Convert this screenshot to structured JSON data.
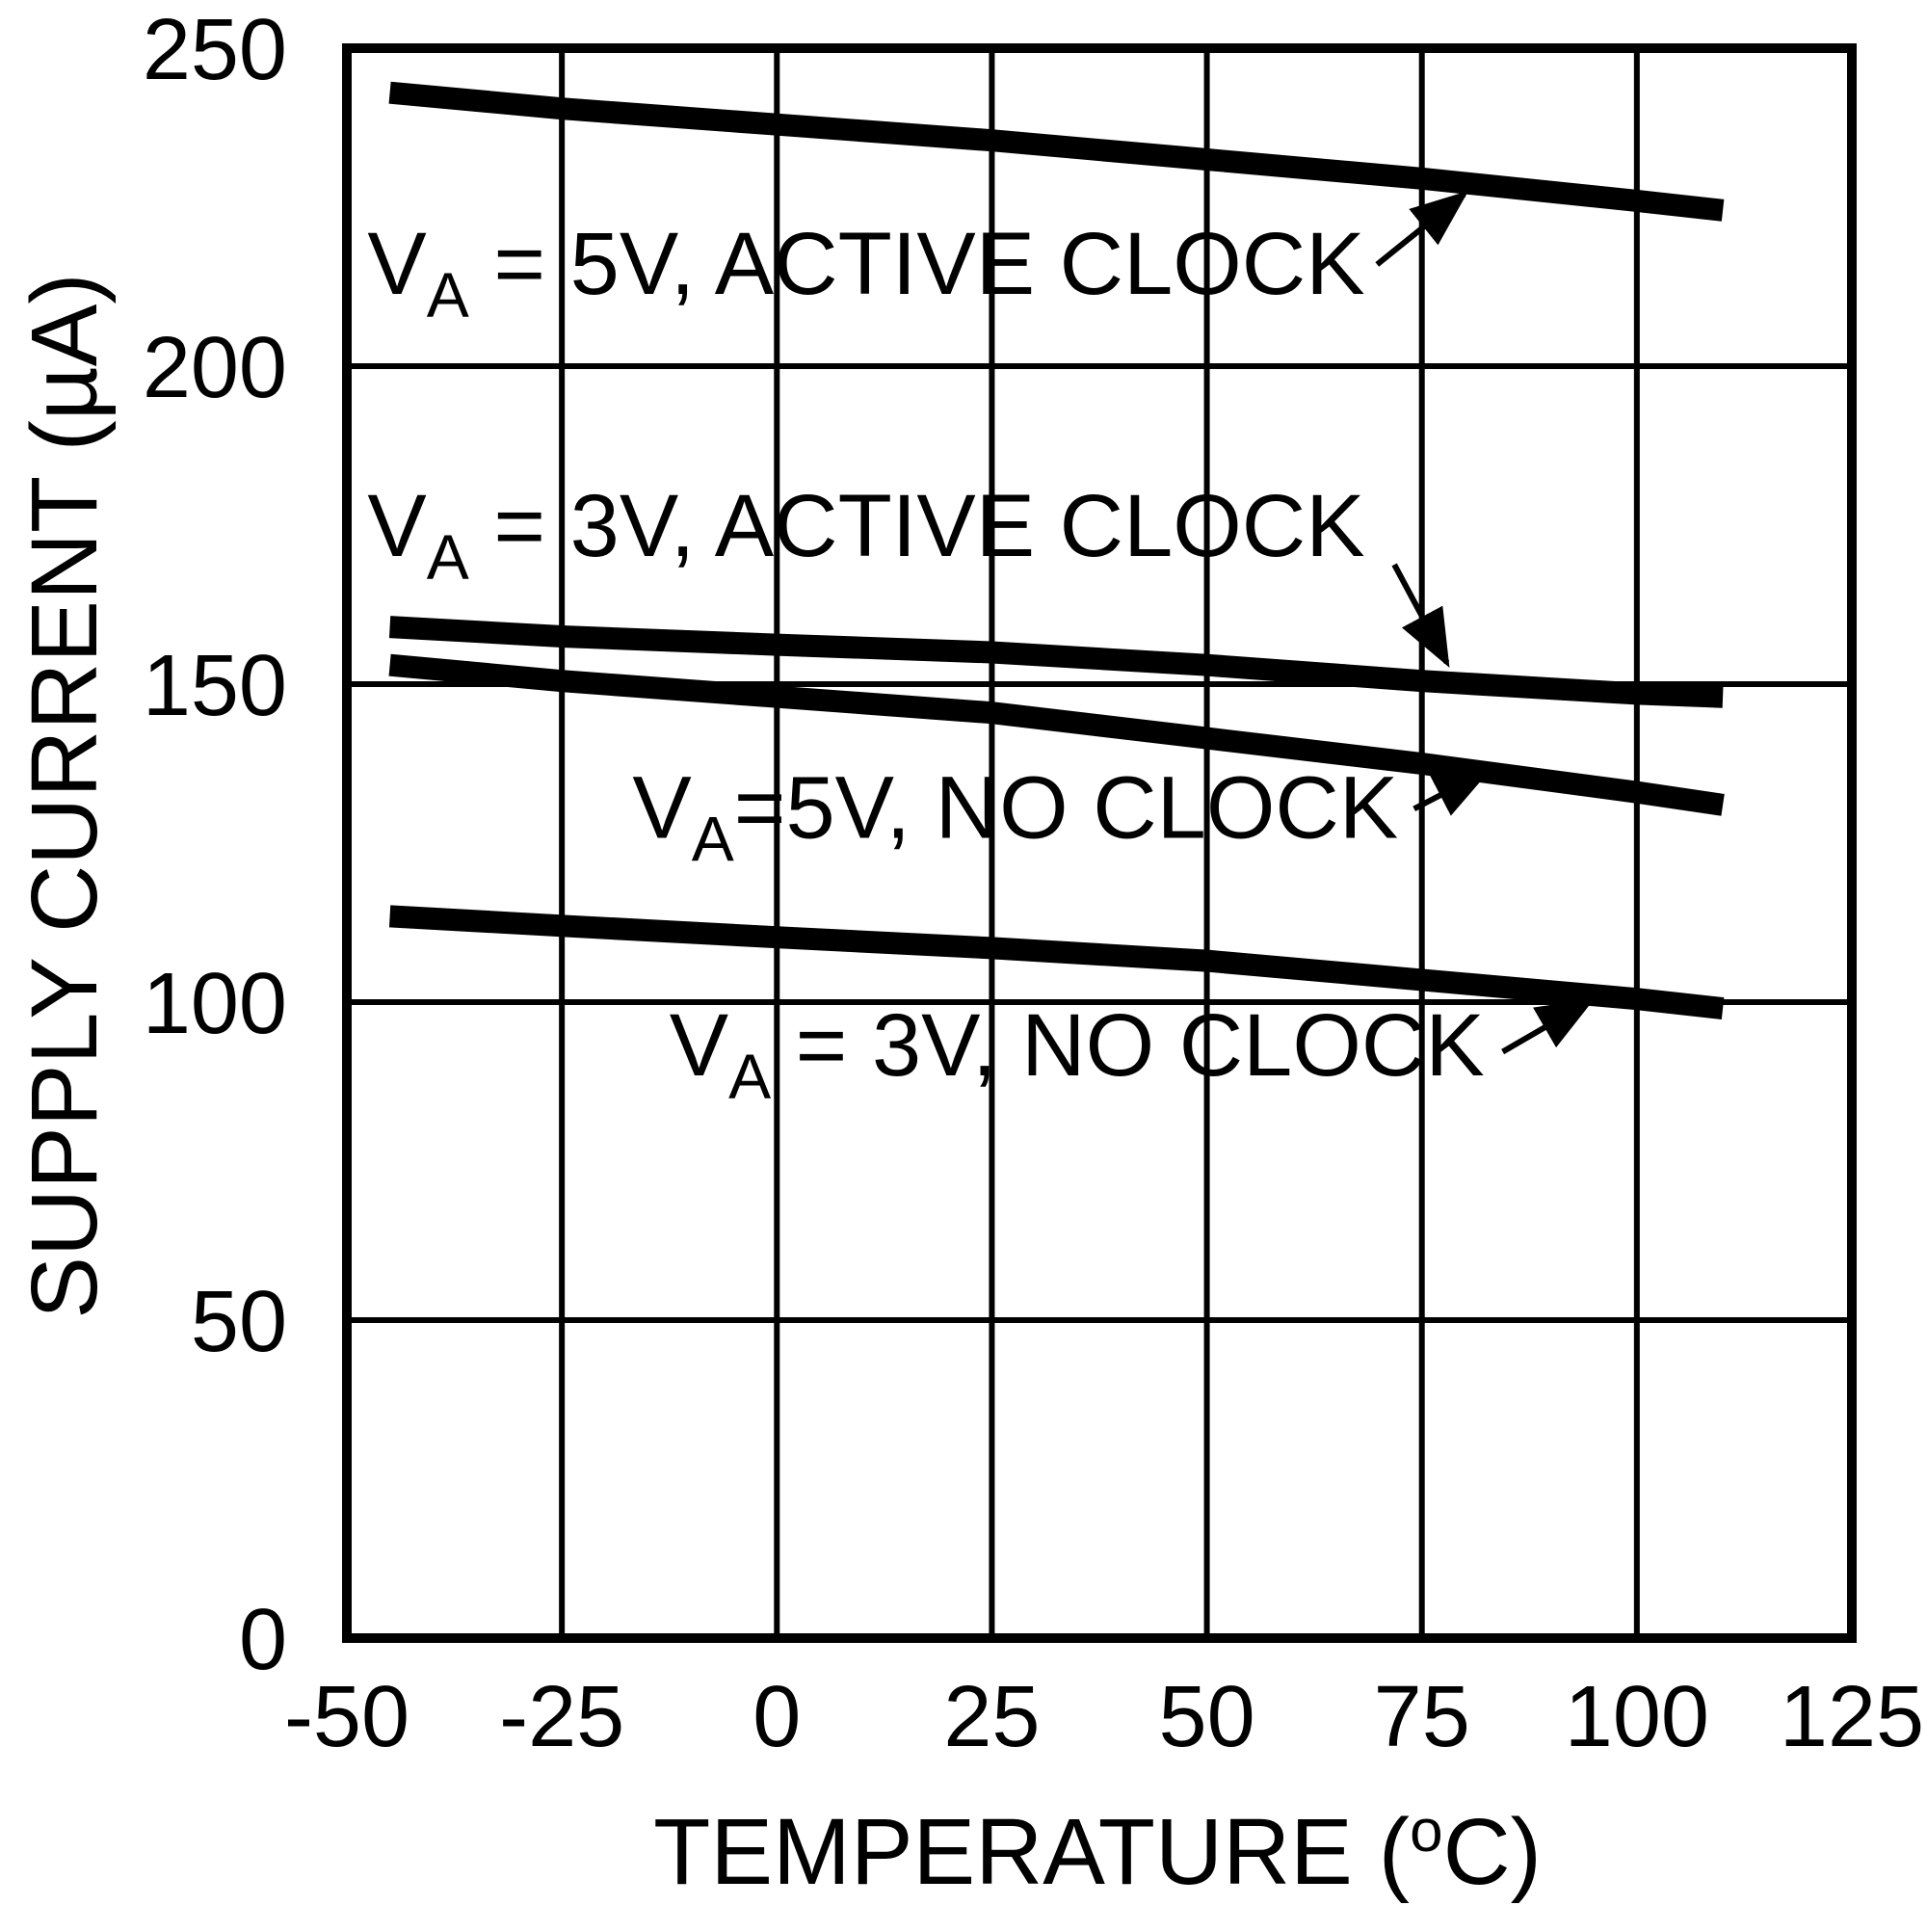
{
  "figure": {
    "background": "#ffffff",
    "ink_color": "#000000"
  },
  "chart_data": {
    "type": "line",
    "title": "",
    "xlabel_parts": {
      "pre": "TEMPERATURE (",
      "sup": "o",
      "post": "C)"
    },
    "ylabel": "SUPPLY CURRENT (µA)",
    "xlim": [
      -50,
      125
    ],
    "ylim": [
      0,
      250
    ],
    "x_ticks": [
      -50,
      -25,
      0,
      25,
      50,
      75,
      100,
      125
    ],
    "y_ticks": [
      0,
      50,
      100,
      150,
      200,
      250
    ],
    "x_tick_labels": [
      "-50",
      "-25",
      "0",
      "25",
      "50",
      "75",
      "100",
      "125"
    ],
    "y_tick_labels": [
      "0",
      "50",
      "100",
      "150",
      "200",
      "250"
    ],
    "grid": true,
    "legend_position": "inline-annotations",
    "x": [
      -45,
      -25,
      0,
      25,
      50,
      75,
      100,
      110
    ],
    "series": [
      {
        "name": "VA = 5V, ACTIVE CLOCK",
        "values": [
          243,
          240.5,
          238,
          235.5,
          232.5,
          229.5,
          226,
          224.5
        ]
      },
      {
        "name": "VA = 3V, ACTIVE CLOCK",
        "values": [
          159,
          157.5,
          156.2,
          155,
          153,
          150.5,
          148.5,
          148
        ]
      },
      {
        "name": "VA=5V, NO CLOCK",
        "values": [
          153,
          150.5,
          148,
          145.5,
          141.5,
          137.5,
          133,
          131
        ]
      },
      {
        "name": "VA = 3V, NO CLOCK",
        "values": [
          113.5,
          112,
          110.2,
          108.5,
          106.5,
          103.5,
          100.5,
          99
        ]
      }
    ],
    "annotations": [
      {
        "id": "label-va-5v-active-clock",
        "pre": "V",
        "sub": "A",
        "rest": " = 5V, ACTIVE CLOCK",
        "t": -47.6,
        "i": 216.2,
        "arrow": {
          "t1": 69.8,
          "i1": 216.0,
          "t2": 79.9,
          "i2": 227.0
        }
      },
      {
        "id": "label-va-3v-active-clock",
        "pre": "V",
        "sub": "A",
        "rest": " = 3V, ACTIVE CLOCK",
        "t": -47.6,
        "i": 175.0,
        "arrow": {
          "t1": 71.8,
          "i1": 168.8,
          "t2": 77.9,
          "i2": 153.4
        }
      },
      {
        "id": "label-va-5v-no-clock",
        "pre": "V",
        "sub": "A",
        "rest": "=5V, NO CLOCK",
        "t": -16.8,
        "i": 130.7,
        "arrow": {
          "t1": 74.1,
          "i1": 130.4,
          "t2": 82.5,
          "i2": 136.3
        }
      },
      {
        "id": "label-va-3v-no-clock",
        "pre": "V",
        "sub": "A",
        "rest": " = 3V, NO CLOCK",
        "t": -12.5,
        "i": 93.3,
        "arrow": {
          "t1": 84.4,
          "i1": 92.2,
          "t2": 94.5,
          "i2": 100.1
        }
      }
    ]
  }
}
